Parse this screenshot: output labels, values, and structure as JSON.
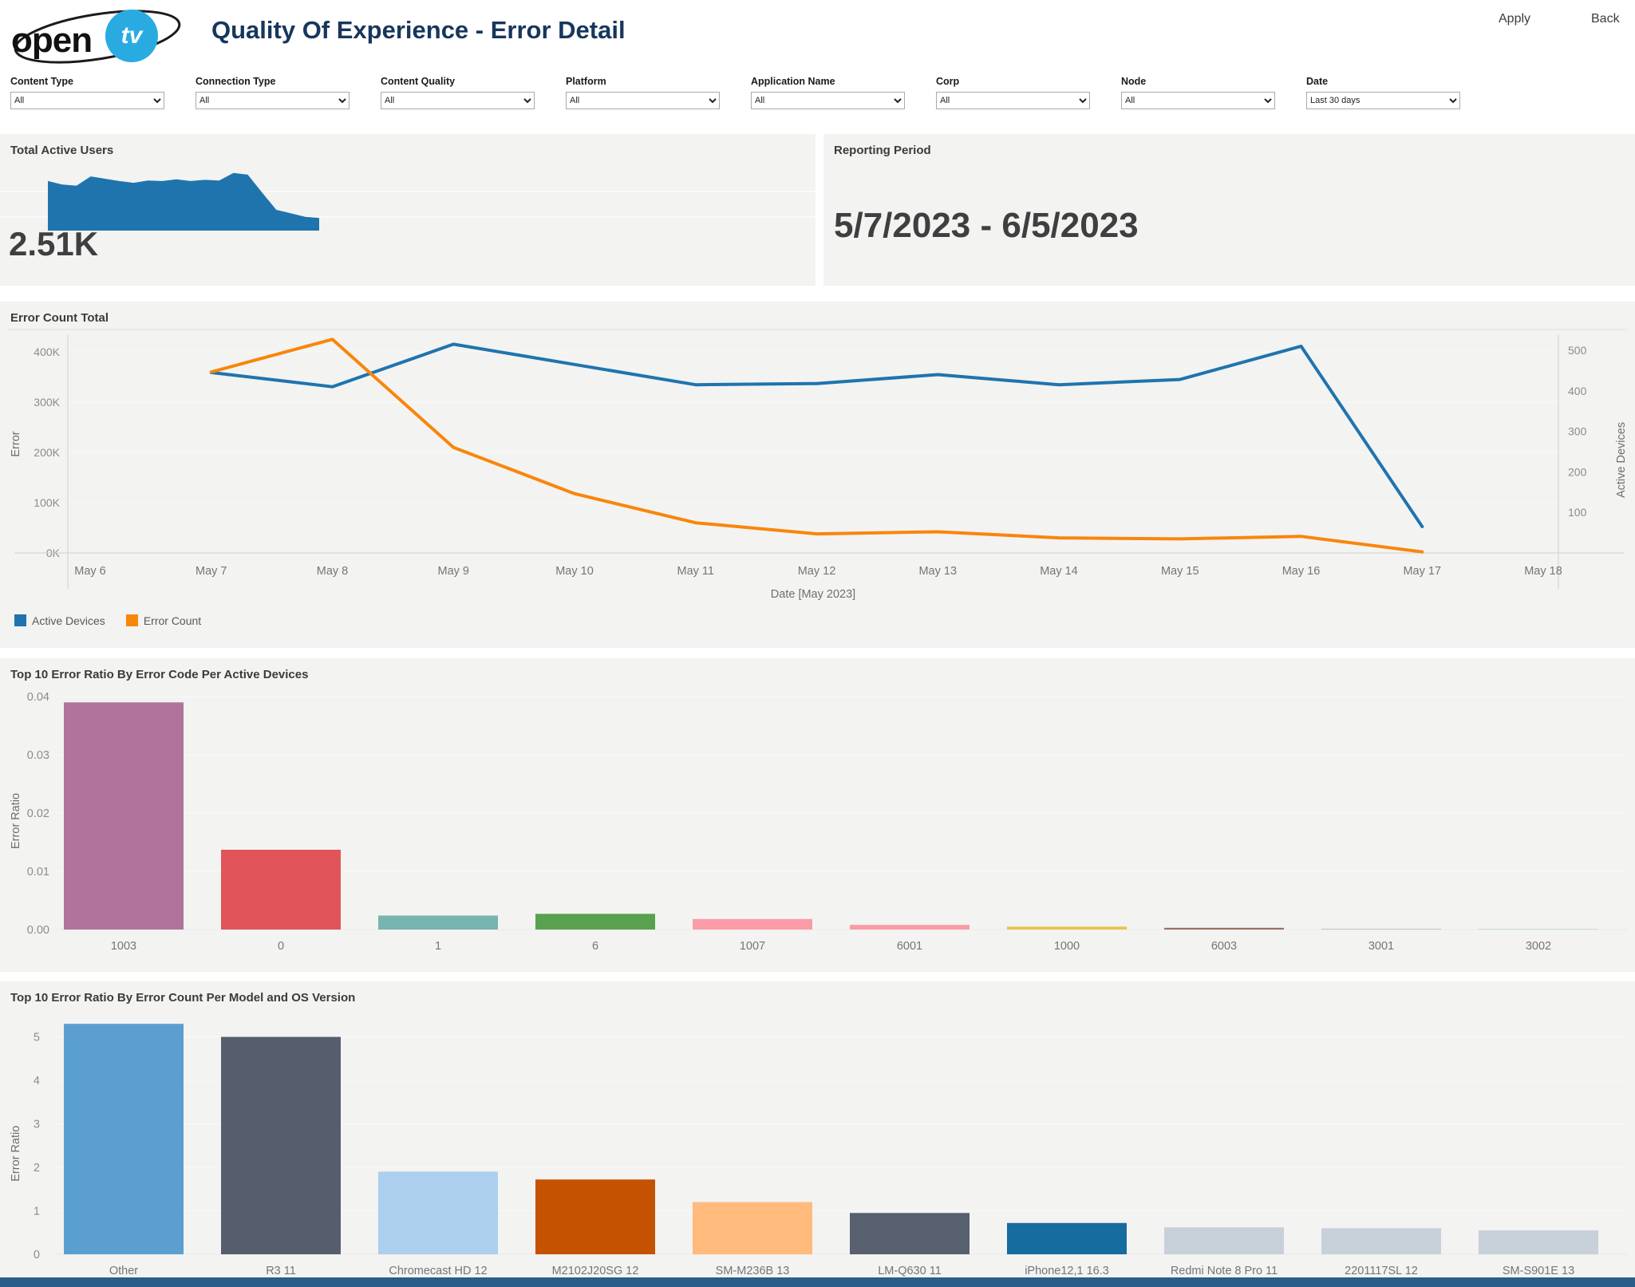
{
  "header": {
    "logo_open": "open",
    "logo_tv": "tv",
    "title": "Quality Of Experience - Error Detail"
  },
  "filters": {
    "items": [
      {
        "label": "Content Type",
        "value": "All"
      },
      {
        "label": "Connection Type",
        "value": "All"
      },
      {
        "label": "Content Quality",
        "value": "All"
      },
      {
        "label": "Platform",
        "value": "All"
      },
      {
        "label": "Application Name",
        "value": "All"
      },
      {
        "label": "Corp",
        "value": "All"
      },
      {
        "label": "Node",
        "value": "All"
      },
      {
        "label": "Date",
        "value": "Last 30 days"
      }
    ],
    "apply_label": "Apply",
    "back_label": "Back"
  },
  "summary": {
    "active_users": {
      "title": "Total Active Users",
      "value": "2.51K",
      "spark_values": [
        430,
        400,
        390,
        470,
        450,
        430,
        415,
        435,
        430,
        445,
        430,
        440,
        435,
        500,
        485,
        330,
        180,
        150,
        120,
        110
      ]
    },
    "reporting": {
      "title": "Reporting Period",
      "value": "5/7/2023 - 6/5/2023"
    }
  },
  "chart_data": [
    {
      "type": "line",
      "title": "Error Count Total",
      "xlabel": "Date [May 2023]",
      "ylabel_left": "Error",
      "ylabel_right": "Active Devices",
      "x_ticks": [
        "May 6",
        "May 7",
        "May 8",
        "May 9",
        "May 10",
        "May 11",
        "May 12",
        "May 13",
        "May 14",
        "May 15",
        "May 16",
        "May 17",
        "May 18"
      ],
      "yticks_left": [
        "0K",
        "100K",
        "200K",
        "300K",
        "400K"
      ],
      "yticks_right": [
        "100",
        "200",
        "300",
        "400",
        "500"
      ],
      "ylim_left": [
        0,
        430000
      ],
      "ylim_right": [
        0,
        540
      ],
      "grid": true,
      "legend_position": "bottom-left",
      "series_x": [
        "May 7",
        "May 8",
        "May 9",
        "May 10",
        "May 11",
        "May 12",
        "May 13",
        "May 14",
        "May 15",
        "May 16",
        "May 17"
      ],
      "series": [
        {
          "name": "Active Devices",
          "axis": "right",
          "color": "#1f74ad",
          "values": [
            445,
            410,
            515,
            465,
            415,
            418,
            440,
            415,
            428,
            510,
            65
          ]
        },
        {
          "name": "Error Count",
          "axis": "left",
          "color": "#f8860b",
          "values": [
            360000,
            425000,
            210000,
            118000,
            60000,
            38000,
            42000,
            30000,
            28000,
            33000,
            2000
          ]
        }
      ]
    },
    {
      "type": "bar",
      "title": "Top 10 Error Ratio By Error Code Per Active Devices",
      "ylabel": "Error Ratio",
      "yticks": [
        "0.00",
        "0.01",
        "0.02",
        "0.03",
        "0.04"
      ],
      "ytick_step": 0.01,
      "ylim": [
        0,
        0.042
      ],
      "categories": [
        "1003",
        "0",
        "1",
        "6",
        "1007",
        "6001",
        "1000",
        "6003",
        "3001",
        "3002"
      ],
      "values": [
        0.039,
        0.0137,
        0.0024,
        0.0027,
        0.0018,
        0.0008,
        0.0005,
        0.0003,
        0.0001,
        5e-05
      ],
      "colors": [
        "#b0749c",
        "#e0545a",
        "#76b5b0",
        "#58a14e",
        "#f99ca6",
        "#f99ca6",
        "#eac44d",
        "#9b7160",
        "#bab0ac",
        "#86bcb6"
      ]
    },
    {
      "type": "bar",
      "title": "Top 10 Error Ratio By Error Count Per Model and OS Version",
      "ylabel": "Error Ratio",
      "yticks": [
        "0",
        "1",
        "2",
        "3",
        "4",
        "5"
      ],
      "ytick_step": 1,
      "ylim": [
        0,
        5.5
      ],
      "categories": [
        "Other",
        "R3 11",
        "Chromecast HD 12",
        "M2102J20SG 12",
        "SM-M236B 13",
        "LM-Q630 11",
        "iPhone12,1 16.3",
        "Redmi Note 8 Pro 11",
        "2201117SL 12",
        "SM-S901E 13"
      ],
      "values": [
        5.3,
        5.0,
        1.9,
        1.72,
        1.2,
        0.95,
        0.72,
        0.62,
        0.6,
        0.55
      ],
      "colors": [
        "#5b9fd0",
        "#565e6d",
        "#abcfec",
        "#c55200",
        "#ffba7c",
        "#586070",
        "#166b9f",
        "#c8d0d9",
        "#c8d0d9",
        "#c8d0d9"
      ]
    }
  ],
  "colors": {
    "title_navy": "#17365d",
    "panel_bg": "#f3f3f2",
    "spark_blue": "#1f74ad",
    "footer_blue": "#2a5d8a",
    "logo_blue": "#29abe2",
    "tick_gray": "#8c8c8c",
    "label_gray": "#757575"
  }
}
